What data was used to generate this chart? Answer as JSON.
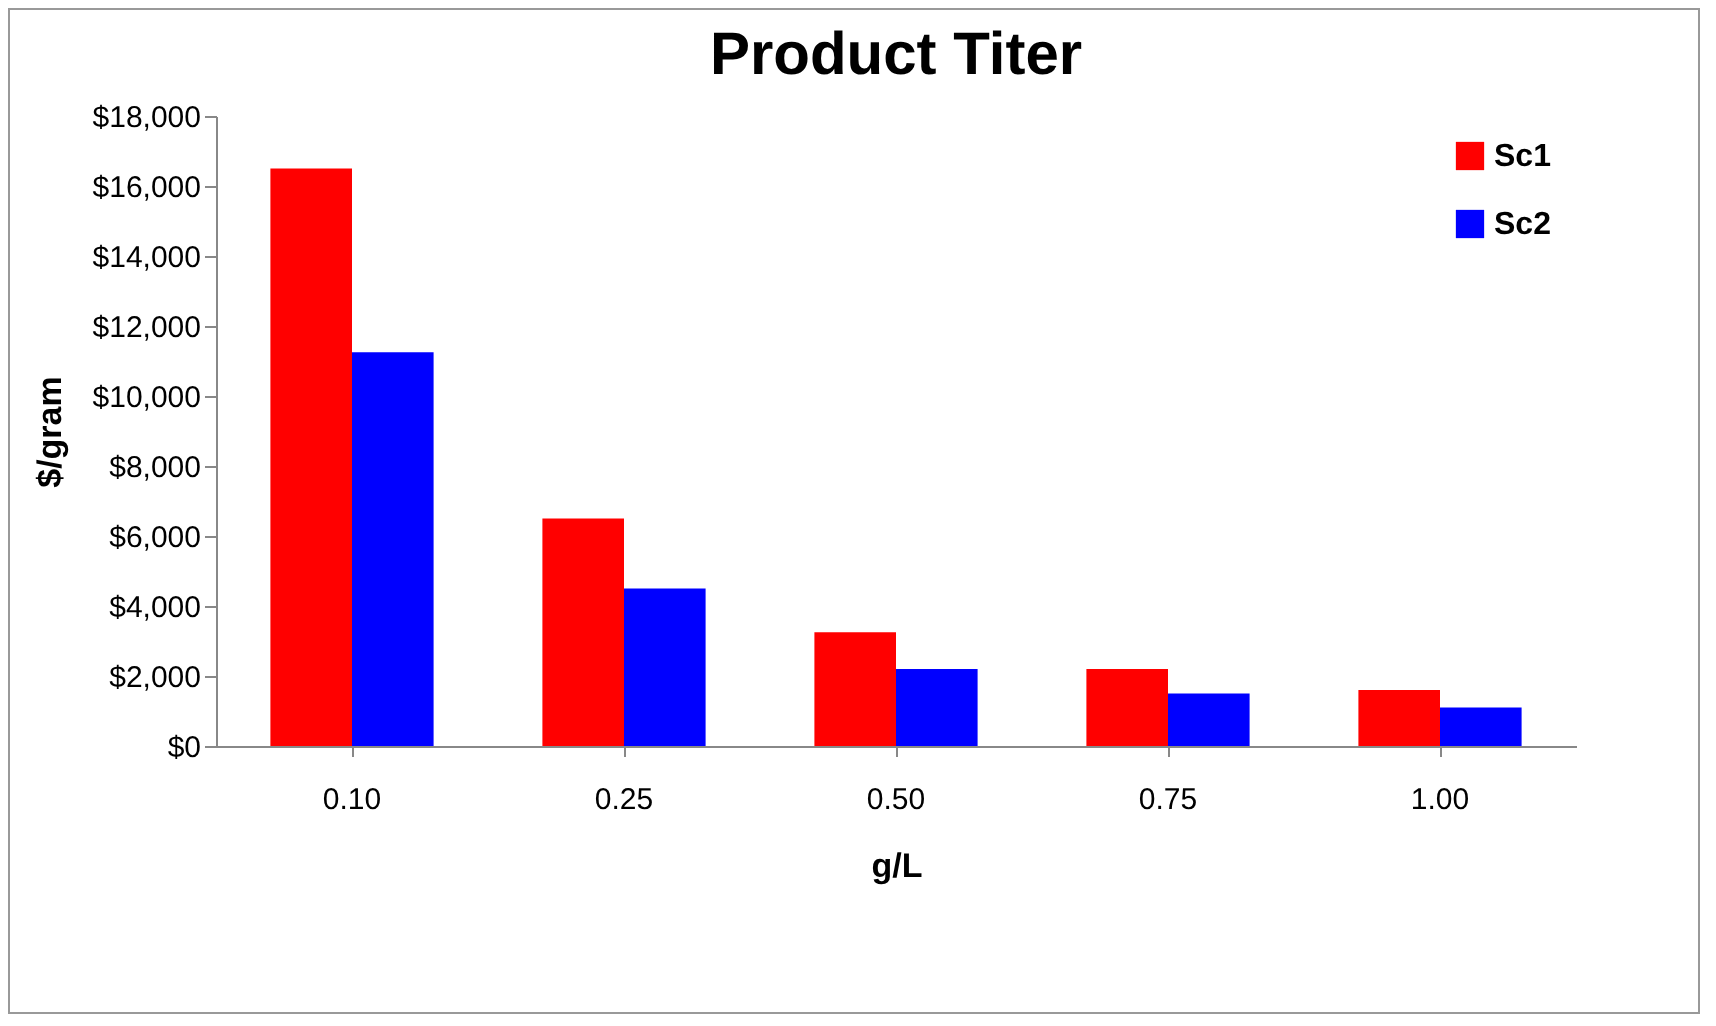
{
  "chart_data": {
    "type": "bar",
    "title": "Product Titer",
    "xlabel": "g/L",
    "ylabel": "$/gram",
    "categories": [
      "0.10",
      "0.25",
      "0.50",
      "0.75",
      "1.00"
    ],
    "series": [
      {
        "name": "Sc1",
        "color": "#ff0000",
        "values": [
          16500,
          6500,
          3250,
          2200,
          1600
        ]
      },
      {
        "name": "Sc2",
        "color": "#0000ff",
        "values": [
          11250,
          4500,
          2200,
          1500,
          1100
        ]
      }
    ],
    "ylim": [
      0,
      18000
    ],
    "yticks": [
      {
        "value": 0,
        "label": "$0"
      },
      {
        "value": 2000,
        "label": "$2,000"
      },
      {
        "value": 4000,
        "label": "$4,000"
      },
      {
        "value": 6000,
        "label": "$6,000"
      },
      {
        "value": 8000,
        "label": "$8,000"
      },
      {
        "value": 10000,
        "label": "$10,000"
      },
      {
        "value": 12000,
        "label": "$12,000"
      },
      {
        "value": 14000,
        "label": "$14,000"
      },
      {
        "value": 16000,
        "label": "$16,000"
      },
      {
        "value": 18000,
        "label": "$18,000"
      }
    ],
    "grid": false,
    "legend": "top right"
  }
}
